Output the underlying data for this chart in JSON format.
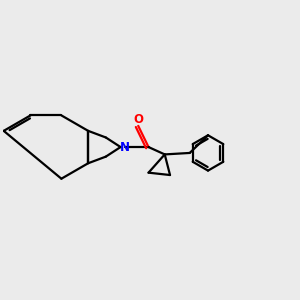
{
  "background_color": "#ebebeb",
  "bond_color": "#000000",
  "nitrogen_color": "#0000ff",
  "oxygen_color": "#ff0000",
  "linewidth": 1.6,
  "figsize": [
    3.0,
    3.0
  ],
  "dpi": 100,
  "xlim": [
    0,
    10
  ],
  "ylim": [
    0,
    10
  ]
}
